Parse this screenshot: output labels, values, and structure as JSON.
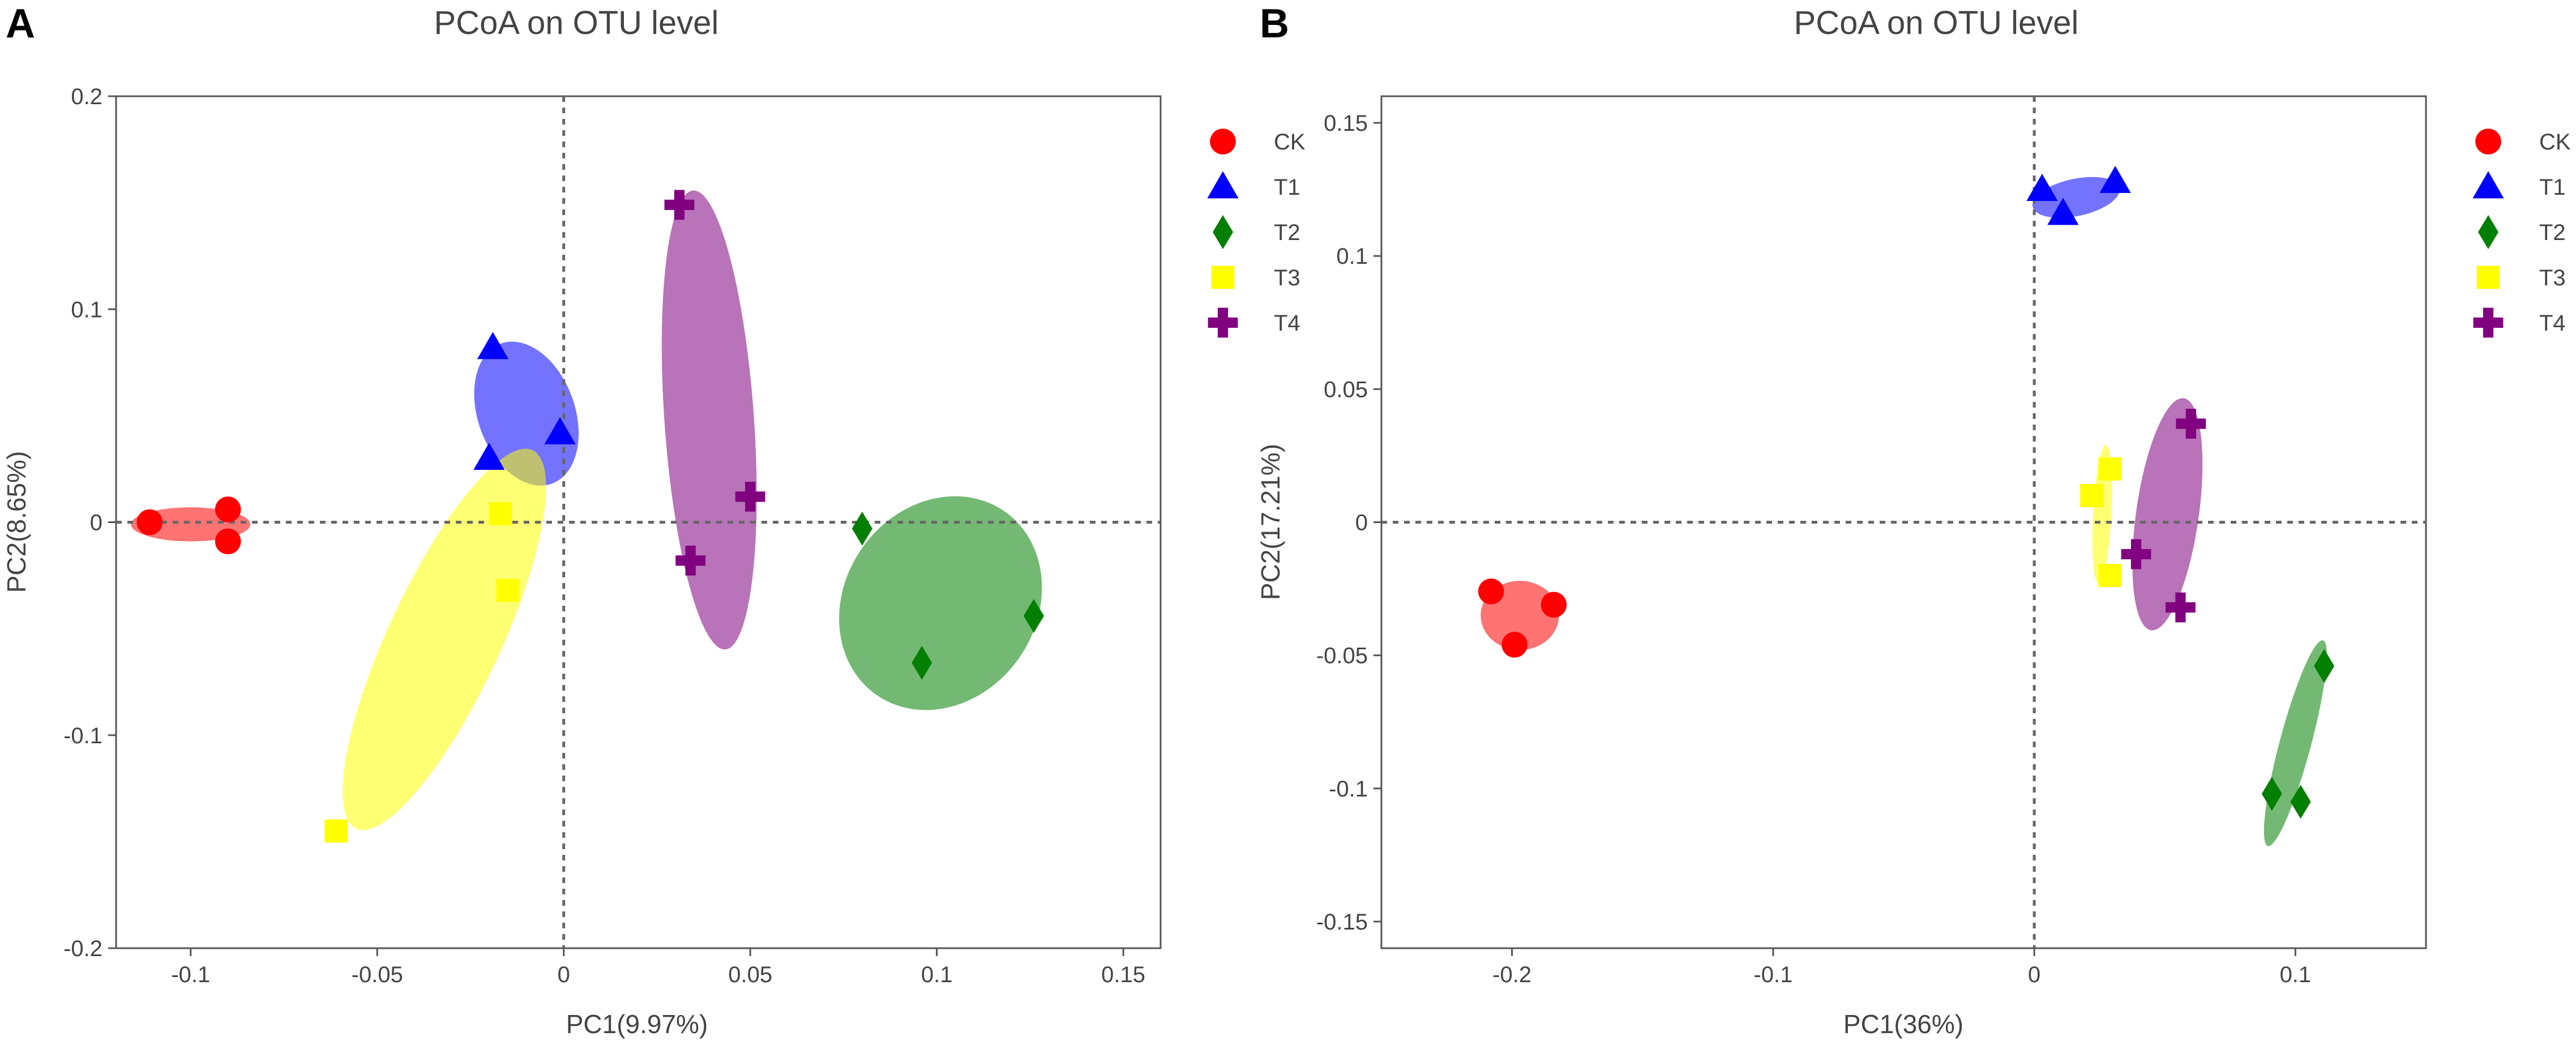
{
  "chart_data": [
    {
      "type": "scatter",
      "panel_label": "A",
      "title": "PCoA on OTU level",
      "xlabel": "PC1(9.97%)",
      "ylabel": "PC2(8.65%)",
      "xlim": [
        -0.12,
        0.16
      ],
      "ylim": [
        -0.2,
        0.2
      ],
      "xticks": [
        -0.1,
        -0.05,
        0,
        0.05,
        0.1,
        0.15
      ],
      "xtick_labels": [
        "-0.1",
        "-0.05",
        "0",
        "0.05",
        "0.1",
        "0.15"
      ],
      "yticks": [
        -0.2,
        -0.1,
        0,
        0.1,
        0.2
      ],
      "ytick_labels": [
        "-0.2",
        "-0.1",
        "0",
        "0.1",
        "0.2"
      ],
      "reference_lines": {
        "x": 0,
        "y": 0
      },
      "legend": "right",
      "series": [
        {
          "name": "CK",
          "color": "#ff0000",
          "marker": "circle",
          "points": [
            [
              -0.111,
              0.0
            ],
            [
              -0.09,
              0.006
            ],
            [
              -0.09,
              -0.009
            ]
          ],
          "ellipse": {
            "center": [
              -0.1,
              -0.001
            ],
            "rx": 0.016,
            "ry": 0.008,
            "angle_deg": 0
          }
        },
        {
          "name": "T1",
          "color": "#0000ff",
          "marker": "triangle",
          "points": [
            [
              -0.019,
              0.082
            ],
            [
              -0.001,
              0.042
            ],
            [
              -0.02,
              0.03
            ]
          ],
          "ellipse": {
            "center": [
              -0.01,
              0.051
            ],
            "rx": 0.013,
            "ry": 0.035,
            "angle_deg": -20
          }
        },
        {
          "name": "T2",
          "color": "#007f00",
          "marker": "diamond",
          "points": [
            [
              0.08,
              -0.003
            ],
            [
              0.096,
              -0.066
            ],
            [
              0.126,
              -0.044
            ]
          ],
          "ellipse": {
            "center": [
              0.101,
              -0.038
            ],
            "rx": 0.03,
            "ry": 0.045,
            "angle_deg": -55
          }
        },
        {
          "name": "T3",
          "color": "#ffff00",
          "marker": "square",
          "points": [
            [
              -0.017,
              0.004
            ],
            [
              -0.015,
              -0.032
            ],
            [
              -0.061,
              -0.145
            ]
          ],
          "ellipse": {
            "center": [
              -0.032,
              -0.055
            ],
            "rx": 0.015,
            "ry": 0.098,
            "angle_deg": 25
          }
        },
        {
          "name": "T4",
          "color": "#800080",
          "marker": "cross",
          "points": [
            [
              0.031,
              0.149
            ],
            [
              0.05,
              0.012
            ],
            [
              0.034,
              -0.018
            ]
          ],
          "ellipse": {
            "center": [
              0.039,
              0.048
            ],
            "rx": 0.012,
            "ry": 0.108,
            "angle_deg": -4
          }
        }
      ]
    },
    {
      "type": "scatter",
      "panel_label": "B",
      "title": "PCoA on OTU level",
      "xlabel": "PC1(36%)",
      "ylabel": "PC2(17.21%)",
      "xlim": [
        -0.25,
        0.15
      ],
      "ylim": [
        -0.16,
        0.16
      ],
      "xticks": [
        -0.2,
        -0.1,
        0,
        0.1
      ],
      "xtick_labels": [
        "-0.2",
        "-0.1",
        "0",
        "0.1"
      ],
      "yticks": [
        -0.15,
        -0.1,
        -0.05,
        0,
        0.05,
        0.1,
        0.15
      ],
      "ytick_labels": [
        "-0.15",
        "-0.1",
        "-0.05",
        "0",
        "0.05",
        "0.1",
        "0.15"
      ],
      "reference_lines": {
        "x": 0,
        "y": 0
      },
      "legend": "right",
      "series": [
        {
          "name": "CK",
          "color": "#ff0000",
          "marker": "circle",
          "points": [
            [
              -0.208,
              -0.026
            ],
            [
              -0.184,
              -0.031
            ],
            [
              -0.199,
              -0.046
            ]
          ],
          "ellipse": {
            "center": [
              -0.197,
              -0.035
            ],
            "rx": 0.015,
            "ry": 0.013,
            "angle_deg": 0
          }
        },
        {
          "name": "T1",
          "color": "#0000ff",
          "marker": "triangle",
          "points": [
            [
              0.003,
              0.125
            ],
            [
              0.011,
              0.116
            ],
            [
              0.031,
              0.128
            ]
          ],
          "ellipse": {
            "center": [
              0.016,
              0.122
            ],
            "rx": 0.017,
            "ry": 0.007,
            "angle_deg": -12
          }
        },
        {
          "name": "T2",
          "color": "#007f00",
          "marker": "diamond",
          "points": [
            [
              0.111,
              -0.054
            ],
            [
              0.091,
              -0.102
            ],
            [
              0.102,
              -0.105
            ]
          ],
          "ellipse": {
            "center": [
              0.1,
              -0.083
            ],
            "rx": 0.006,
            "ry": 0.04,
            "angle_deg": 15
          }
        },
        {
          "name": "T3",
          "color": "#ffff00",
          "marker": "square",
          "points": [
            [
              0.022,
              0.01
            ],
            [
              0.029,
              0.02
            ],
            [
              0.029,
              -0.02
            ]
          ],
          "ellipse": {
            "center": [
              0.026,
              0.003
            ],
            "rx": 0.0035,
            "ry": 0.026,
            "angle_deg": 3
          }
        },
        {
          "name": "T4",
          "color": "#800080",
          "marker": "cross",
          "points": [
            [
              0.06,
              0.037
            ],
            [
              0.039,
              -0.012
            ],
            [
              0.056,
              -0.032
            ]
          ],
          "ellipse": {
            "center": [
              0.051,
              0.003
            ],
            "rx": 0.012,
            "ry": 0.044,
            "angle_deg": 8
          }
        }
      ]
    }
  ]
}
